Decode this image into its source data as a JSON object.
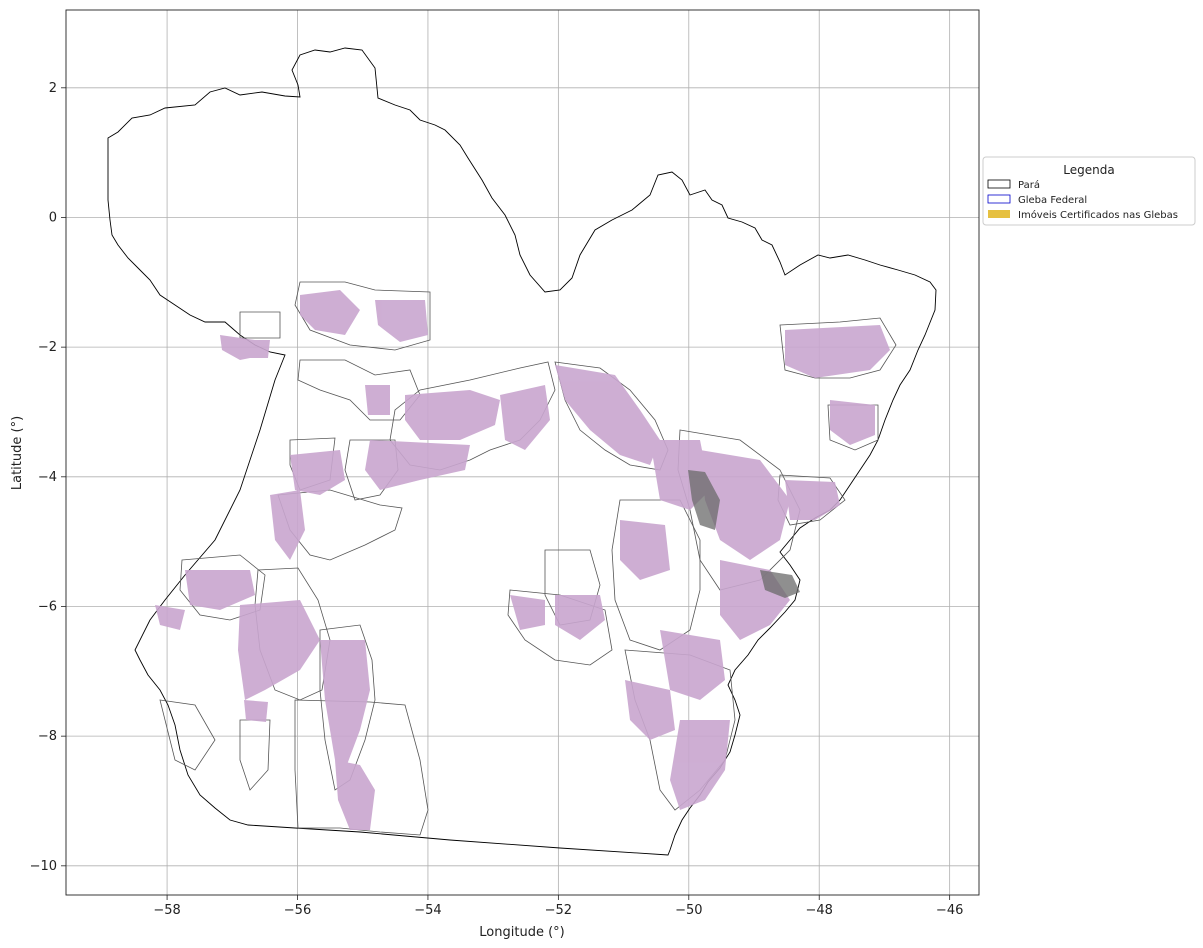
{
  "map": {
    "xlim": [
      -59.55,
      -45.55
    ],
    "ylim": [
      -10.45,
      3.2
    ],
    "xticks": [
      -58,
      -56,
      -54,
      -52,
      -50,
      -48,
      -46
    ],
    "yticks": [
      2,
      0,
      -2,
      -4,
      -6,
      -8,
      -10
    ],
    "xlabel": "Longitude (°)",
    "ylabel": "Latitude (°)",
    "grid": true,
    "colors": {
      "state_outline": "#000000",
      "gleba_outline": "#555555",
      "property_fill": "#c9a6cf",
      "legend_gleba": "#0000cc",
      "legend_imoveis": "#e6c040"
    }
  },
  "legend": {
    "title": "Legenda",
    "placement": "right",
    "items": [
      {
        "label": "Pará",
        "swatch": "outline-black"
      },
      {
        "label": "Gleba Federal",
        "swatch": "outline-blue"
      },
      {
        "label": "Imóveis Certificados nas Glebas",
        "swatch": "fill-yellow"
      }
    ]
  }
}
